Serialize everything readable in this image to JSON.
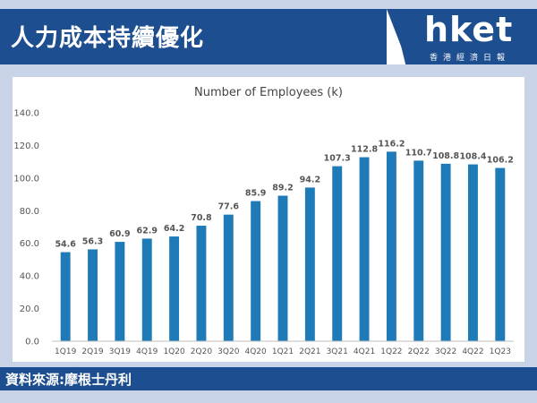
{
  "header": {
    "title": "人力成本持續優化",
    "brand": "hket",
    "brand_sub": "香港經濟日報"
  },
  "source": {
    "text": "資料來源:摩根士丹利"
  },
  "colors": {
    "header_bg": "#1d4e8f",
    "page_bg": "#c9d3e8",
    "bar": "#1f7bb8"
  },
  "chart_data": {
    "type": "bar",
    "title": "Number of Employees (k)",
    "categories": [
      "1Q19",
      "2Q19",
      "3Q19",
      "4Q19",
      "1Q20",
      "2Q20",
      "3Q20",
      "4Q20",
      "1Q21",
      "2Q21",
      "3Q21",
      "4Q21",
      "1Q22",
      "2Q22",
      "3Q22",
      "4Q22",
      "1Q23"
    ],
    "values": [
      54.6,
      56.3,
      60.9,
      62.9,
      64.2,
      70.8,
      77.6,
      85.9,
      89.2,
      94.2,
      107.3,
      112.8,
      116.2,
      110.7,
      108.8,
      108.4,
      106.2
    ],
    "data_labels": [
      "54.6",
      "56.3",
      "60.9",
      "62.9",
      "64.2",
      "70.8",
      "77.6",
      "85.9",
      "89.2",
      "94.2",
      "107.3",
      "112.8",
      "116.2",
      "110.7",
      "108.8",
      "108.4",
      "106.2"
    ],
    "y_ticks": [
      "0.0",
      "20.0",
      "40.0",
      "60.0",
      "80.0",
      "100.0",
      "120.0",
      "140.0"
    ],
    "ylim": [
      0,
      140
    ],
    "grid": false,
    "legend": "none"
  }
}
